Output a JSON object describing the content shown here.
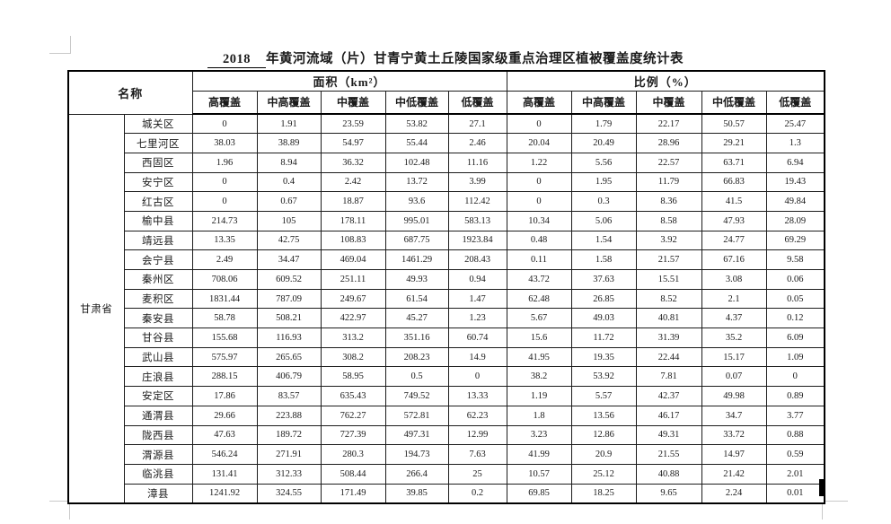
{
  "title": {
    "year": "2018",
    "text": "年黄河流域（片）甘青宁黄土丘陵国家级重点治理区植被覆盖度统计表"
  },
  "table": {
    "header": {
      "name": "名称",
      "area_group": "面积（km²）",
      "ratio_group": "比例（%）",
      "sub": [
        "高覆盖",
        "中高覆盖",
        "中覆盖",
        "中低覆盖",
        "低覆盖"
      ]
    },
    "province": "甘肃省",
    "rows": [
      {
        "name": "城关区",
        "area": [
          "0",
          "1.91",
          "23.59",
          "53.82",
          "27.1"
        ],
        "ratio": [
          "0",
          "1.79",
          "22.17",
          "50.57",
          "25.47"
        ]
      },
      {
        "name": "七里河区",
        "area": [
          "38.03",
          "38.89",
          "54.97",
          "55.44",
          "2.46"
        ],
        "ratio": [
          "20.04",
          "20.49",
          "28.96",
          "29.21",
          "1.3"
        ]
      },
      {
        "name": "西固区",
        "area": [
          "1.96",
          "8.94",
          "36.32",
          "102.48",
          "11.16"
        ],
        "ratio": [
          "1.22",
          "5.56",
          "22.57",
          "63.71",
          "6.94"
        ]
      },
      {
        "name": "安宁区",
        "area": [
          "0",
          "0.4",
          "2.42",
          "13.72",
          "3.99"
        ],
        "ratio": [
          "0",
          "1.95",
          "11.79",
          "66.83",
          "19.43"
        ]
      },
      {
        "name": "红古区",
        "area": [
          "0",
          "0.67",
          "18.87",
          "93.6",
          "112.42"
        ],
        "ratio": [
          "0",
          "0.3",
          "8.36",
          "41.5",
          "49.84"
        ]
      },
      {
        "name": "榆中县",
        "area": [
          "214.73",
          "105",
          "178.11",
          "995.01",
          "583.13"
        ],
        "ratio": [
          "10.34",
          "5.06",
          "8.58",
          "47.93",
          "28.09"
        ]
      },
      {
        "name": "靖远县",
        "area": [
          "13.35",
          "42.75",
          "108.83",
          "687.75",
          "1923.84"
        ],
        "ratio": [
          "0.48",
          "1.54",
          "3.92",
          "24.77",
          "69.29"
        ]
      },
      {
        "name": "会宁县",
        "area": [
          "2.49",
          "34.47",
          "469.04",
          "1461.29",
          "208.43"
        ],
        "ratio": [
          "0.11",
          "1.58",
          "21.57",
          "67.16",
          "9.58"
        ]
      },
      {
        "name": "秦州区",
        "area": [
          "708.06",
          "609.52",
          "251.11",
          "49.93",
          "0.94"
        ],
        "ratio": [
          "43.72",
          "37.63",
          "15.51",
          "3.08",
          "0.06"
        ]
      },
      {
        "name": "麦积区",
        "area": [
          "1831.44",
          "787.09",
          "249.67",
          "61.54",
          "1.47"
        ],
        "ratio": [
          "62.48",
          "26.85",
          "8.52",
          "2.1",
          "0.05"
        ]
      },
      {
        "name": "秦安县",
        "area": [
          "58.78",
          "508.21",
          "422.97",
          "45.27",
          "1.23"
        ],
        "ratio": [
          "5.67",
          "49.03",
          "40.81",
          "4.37",
          "0.12"
        ]
      },
      {
        "name": "甘谷县",
        "area": [
          "155.68",
          "116.93",
          "313.2",
          "351.16",
          "60.74"
        ],
        "ratio": [
          "15.6",
          "11.72",
          "31.39",
          "35.2",
          "6.09"
        ]
      },
      {
        "name": "武山县",
        "area": [
          "575.97",
          "265.65",
          "308.2",
          "208.23",
          "14.9"
        ],
        "ratio": [
          "41.95",
          "19.35",
          "22.44",
          "15.17",
          "1.09"
        ]
      },
      {
        "name": "庄浪县",
        "area": [
          "288.15",
          "406.79",
          "58.95",
          "0.5",
          "0"
        ],
        "ratio": [
          "38.2",
          "53.92",
          "7.81",
          "0.07",
          "0"
        ]
      },
      {
        "name": "安定区",
        "area": [
          "17.86",
          "83.57",
          "635.43",
          "749.52",
          "13.33"
        ],
        "ratio": [
          "1.19",
          "5.57",
          "42.37",
          "49.98",
          "0.89"
        ]
      },
      {
        "name": "通渭县",
        "area": [
          "29.66",
          "223.88",
          "762.27",
          "572.81",
          "62.23"
        ],
        "ratio": [
          "1.8",
          "13.56",
          "46.17",
          "34.7",
          "3.77"
        ]
      },
      {
        "name": "陇西县",
        "area": [
          "47.63",
          "189.72",
          "727.39",
          "497.31",
          "12.99"
        ],
        "ratio": [
          "3.23",
          "12.86",
          "49.31",
          "33.72",
          "0.88"
        ]
      },
      {
        "name": "渭源县",
        "area": [
          "546.24",
          "271.91",
          "280.3",
          "194.73",
          "7.63"
        ],
        "ratio": [
          "41.99",
          "20.9",
          "21.55",
          "14.97",
          "0.59"
        ]
      },
      {
        "name": "临洮县",
        "area": [
          "131.41",
          "312.33",
          "508.44",
          "266.4",
          "25"
        ],
        "ratio": [
          "10.57",
          "25.12",
          "40.88",
          "21.42",
          "2.01"
        ]
      },
      {
        "name": "漳县",
        "area": [
          "1241.92",
          "324.55",
          "171.49",
          "39.85",
          "0.2"
        ],
        "ratio": [
          "69.85",
          "18.25",
          "9.65",
          "2.24",
          "0.01"
        ]
      }
    ]
  }
}
